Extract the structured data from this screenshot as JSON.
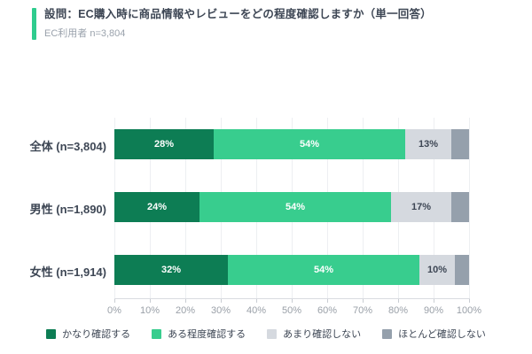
{
  "header": {
    "title": "設問：EC購入時に商品情報やレビューをどの程度確認しますか（単一回答）",
    "subtitle": "EC利用者 n=3,804",
    "accent_color": "#2fcc8e"
  },
  "chart_data": {
    "type": "bar",
    "stacked": true,
    "orientation": "horizontal",
    "title": "設問：EC購入時に商品情報やレビューをどの程度確認しますか（単一回答）",
    "categories": [
      "全体 (n=3,804)",
      "男性 (n=1,890)",
      "女性 (n=1,914)"
    ],
    "series": [
      {
        "name": "かなり確認する",
        "color": "#0d7d54",
        "label_color": "#ffffff",
        "show_label": true,
        "values": [
          28,
          24,
          32
        ]
      },
      {
        "name": "ある程度確認する",
        "color": "#38cd8e",
        "label_color": "#ffffff",
        "show_label": true,
        "values": [
          54,
          54,
          54
        ]
      },
      {
        "name": "あまり確認しない",
        "color": "#d5d9df",
        "label_color": "#3d4654",
        "show_label": true,
        "values": [
          13,
          17,
          10
        ]
      },
      {
        "name": "ほとんど確認しない",
        "color": "#95a0ac",
        "label_color": "#ffffff",
        "show_label": false,
        "values": [
          5,
          5,
          4
        ]
      }
    ],
    "value_suffix": "%",
    "xlim": [
      0,
      100
    ],
    "x_ticks": [
      "0%",
      "10%",
      "20%",
      "30%",
      "40%",
      "50%",
      "60%",
      "70%",
      "80%",
      "90%",
      "100%"
    ],
    "grid": true,
    "legend_position": "bottom"
  }
}
